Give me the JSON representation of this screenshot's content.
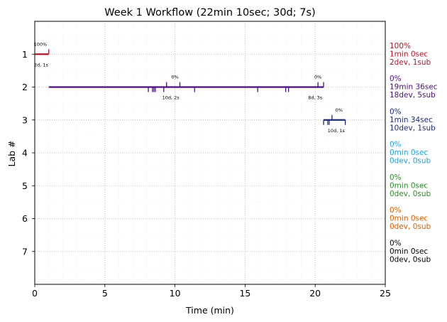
{
  "chart_data": {
    "type": "timeline",
    "title": "Week 1 Workflow (22min 10sec; 30d; 7s)",
    "xlabel": "Time (min)",
    "ylabel": "Lab #",
    "xlim": [
      0,
      25
    ],
    "ylim": [
      8,
      0
    ],
    "x_ticks": [
      0,
      5,
      10,
      15,
      20,
      25
    ],
    "y_ticks": [
      1,
      2,
      3,
      4,
      5,
      6,
      7
    ],
    "grid": true,
    "minor_grid": true,
    "labs": [
      {
        "lab": 1,
        "color": "#b2182b",
        "start": 0,
        "end": 1.0,
        "annot": [
          "100%",
          "1min 0sec",
          "2dev, 1sub"
        ],
        "dev_ticks": [],
        "sub_ticks": [
          1.0
        ],
        "labels": [
          {
            "x": 0.4,
            "pos": "above",
            "text": "100%"
          },
          {
            "x": 0.45,
            "pos": "below",
            "text": "2d, 1s"
          }
        ]
      },
      {
        "lab": 2,
        "color": "#4b0f7d",
        "start": 1.0,
        "end": 20.6,
        "annot": [
          "0%",
          "19min 36sec",
          "18dev, 5sub"
        ],
        "dev_ticks": [
          8.1,
          8.4,
          8.5,
          8.6,
          9.2,
          11.4,
          15.9,
          17.9,
          18.1
        ],
        "sub_ticks": [
          9.4,
          10.35,
          20.2,
          20.6
        ],
        "labels": [
          {
            "x": 10.0,
            "pos": "above",
            "text": "0%"
          },
          {
            "x": 9.7,
            "pos": "below",
            "text": "10d, 2s"
          },
          {
            "x": 20.2,
            "pos": "above",
            "text": "0%"
          },
          {
            "x": 20.0,
            "pos": "below",
            "text": "8d, 3s"
          }
        ]
      },
      {
        "lab": 3,
        "color": "#1f2a78",
        "start": 20.6,
        "end": 22.15,
        "annot": [
          "0%",
          "1min 34sec",
          "10dev, 1sub"
        ],
        "dev_ticks": [
          20.6,
          20.9,
          21.0,
          22.15
        ],
        "sub_ticks": [
          21.2
        ],
        "labels": [
          {
            "x": 21.7,
            "pos": "above",
            "text": "0%"
          },
          {
            "x": 21.5,
            "pos": "below",
            "text": "10d, 1s"
          }
        ]
      },
      {
        "lab": 4,
        "color": "#1f9fd8",
        "annot": [
          "0%",
          "0min 0sec",
          "0dev, 0sub"
        ]
      },
      {
        "lab": 5,
        "color": "#2e8b2e",
        "annot": [
          "0%",
          "0min 0sec",
          "0dev, 0sub"
        ]
      },
      {
        "lab": 6,
        "color": "#d95f02",
        "annot": [
          "0%",
          "0min 0sec",
          "0dev, 0sub"
        ]
      },
      {
        "lab": 7,
        "color": "#000000",
        "annot": [
          "0%",
          "0min 0sec",
          "0dev, 0sub"
        ]
      }
    ]
  }
}
